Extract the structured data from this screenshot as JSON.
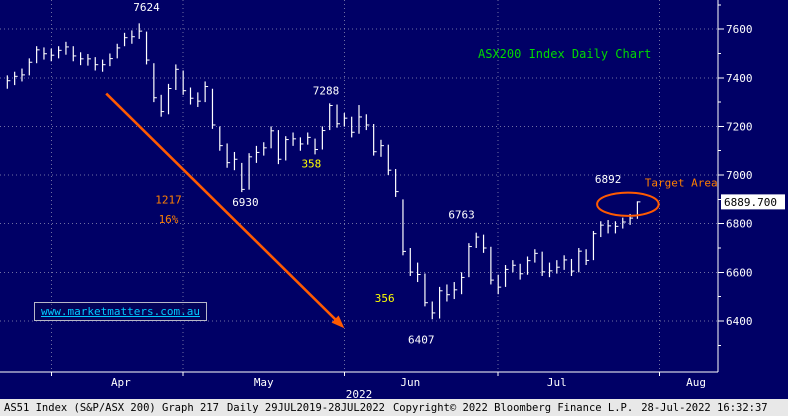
{
  "title_annotation": {
    "text": "ASX200 Index Daily Chart",
    "color": "#00d900"
  },
  "watermark": {
    "text": "www.marketmatters.com.au",
    "color": "#00ccff"
  },
  "footer": {
    "segments": [
      "AS51 Index (S&P/ASX 200) Graph 217",
      "Daily 29JUL2019-28JUL2022",
      "Copyright© 2022 Bloomberg Finance L.P.",
      "28-Jul-2022 16:32:37"
    ]
  },
  "colors": {
    "background": "#000066",
    "foreground": "#ffffff",
    "grid": "#8d8db3",
    "title_green": "#00d900",
    "annotation_yellow": "#ffff00",
    "annotation_orange": "#ff8000",
    "arrow_orange": "#ff5a00",
    "watermark_cyan": "#00ccff",
    "footer_bg": "#e8e8e8",
    "footer_text": "#000000"
  },
  "chart_data": {
    "type": "bar",
    "title": "ASX200 Index Daily Chart",
    "xlabel": "2022",
    "ylabel": "",
    "ylim": [
      6190,
      7720
    ],
    "yticks": [
      6400,
      6600,
      6800,
      7000,
      7200,
      7400,
      7600
    ],
    "x_domain": [
      -1,
      97
    ],
    "grid": "dotted",
    "last": 6889.7,
    "last_label": "6889.700",
    "x_axis": {
      "year": "2022"
    },
    "months": [
      {
        "label": "Apr",
        "start": 6,
        "label_at": 15.5
      },
      {
        "label": "May",
        "start": 24,
        "label_at": 35
      },
      {
        "label": "Jun",
        "start": 46,
        "label_at": 55
      },
      {
        "label": "Jul",
        "start": 67,
        "label_at": 75
      },
      {
        "label": "Aug",
        "start": 89,
        "label_at": 94
      }
    ],
    "series": [
      {
        "name": "AS51 Index (S&P/ASX 200)",
        "close": [
          7388,
          7406,
          7412,
          7464,
          7515,
          7499,
          7493,
          7513,
          7527,
          7490,
          7478,
          7478,
          7454,
          7454,
          7479,
          7523,
          7565,
          7569,
          7592,
          7473,
          7318,
          7261,
          7356,
          7435,
          7347,
          7316,
          7304,
          7364,
          7206,
          7121,
          7051,
          7065,
          6941,
          7075,
          7093,
          7112,
          7182,
          7065,
          7146,
          7149,
          7128,
          7155,
          7105,
          7183,
          7286,
          7211,
          7234,
          7176,
          7239,
          7206,
          7096,
          7121,
          7020,
          6932,
          6686,
          6601,
          6591,
          6475,
          6433,
          6524,
          6508,
          6528,
          6579,
          6706,
          6745,
          6700,
          6568,
          6539,
          6612,
          6629,
          6594,
          6648,
          6678,
          6602,
          6606,
          6621,
          6651,
          6605,
          6687,
          6649,
          6759,
          6794,
          6791,
          6789,
          6807,
          6823,
          6889.7
        ],
        "high": [
          7410,
          7425,
          7438,
          7480,
          7530,
          7525,
          7520,
          7530,
          7548,
          7530,
          7505,
          7498,
          7485,
          7475,
          7500,
          7540,
          7585,
          7595,
          7624,
          7590,
          7460,
          7330,
          7375,
          7455,
          7430,
          7360,
          7340,
          7385,
          7355,
          7200,
          7130,
          7095,
          7050,
          7090,
          7120,
          7135,
          7200,
          7185,
          7160,
          7175,
          7155,
          7175,
          7150,
          7200,
          7295,
          7290,
          7255,
          7240,
          7288,
          7250,
          7210,
          7145,
          7125,
          7025,
          6900,
          6700,
          6640,
          6595,
          6480,
          6540,
          6550,
          6560,
          6600,
          6720,
          6763,
          6755,
          6705,
          6590,
          6630,
          6650,
          6635,
          6665,
          6695,
          6685,
          6640,
          6650,
          6670,
          6655,
          6700,
          6695,
          6770,
          6810,
          6815,
          6810,
          6825,
          6840,
          6892
        ],
        "low": [
          7355,
          7370,
          7385,
          7410,
          7460,
          7475,
          7468,
          7480,
          7495,
          7468,
          7452,
          7450,
          7430,
          7425,
          7448,
          7480,
          7530,
          7540,
          7560,
          7455,
          7300,
          7240,
          7250,
          7350,
          7330,
          7290,
          7280,
          7300,
          7190,
          7100,
          7030,
          7020,
          6930,
          6940,
          7050,
          7080,
          7110,
          7045,
          7060,
          7120,
          7100,
          7125,
          7085,
          7105,
          7185,
          7195,
          7200,
          7155,
          7170,
          7185,
          7080,
          7075,
          7000,
          6910,
          6670,
          6585,
          6560,
          6460,
          6407,
          6410,
          6480,
          6490,
          6510,
          6580,
          6700,
          6680,
          6550,
          6510,
          6540,
          6600,
          6570,
          6590,
          6640,
          6585,
          6580,
          6595,
          6610,
          6585,
          6600,
          6630,
          6650,
          6745,
          6760,
          6760,
          6780,
          6795,
          6820
        ]
      }
    ],
    "annotations": [
      {
        "name": "peak-7624",
        "text": "7624",
        "x": 19,
        "y": 7675,
        "color": "#ffffff"
      },
      {
        "name": "high-7288",
        "text": "7288",
        "x": 43.5,
        "y": 7332,
        "color": "#ffffff"
      },
      {
        "name": "rally-358",
        "text": "358",
        "x": 41.5,
        "y": 7032,
        "color": "#ffff00"
      },
      {
        "name": "low-6930",
        "text": "6930",
        "x": 32.5,
        "y": 6872,
        "color": "#ffffff"
      },
      {
        "name": "decline-1217",
        "text": "1217",
        "x": 22,
        "y": 6882,
        "color": "#ff8000"
      },
      {
        "name": "decline-16pct",
        "text": "16%",
        "x": 22,
        "y": 6802,
        "color": "#ff8000"
      },
      {
        "name": "high-6763",
        "text": "6763",
        "x": 62,
        "y": 6822,
        "color": "#ffffff"
      },
      {
        "name": "rally-356",
        "text": "356",
        "x": 51.5,
        "y": 6478,
        "color": "#ffff00"
      },
      {
        "name": "low-6407",
        "text": "6407",
        "x": 56.5,
        "y": 6308,
        "color": "#ffffff"
      },
      {
        "name": "high-6892",
        "text": "6892",
        "x": 82,
        "y": 6968,
        "color": "#ffffff"
      },
      {
        "name": "target-area",
        "text": "Target Area",
        "x": 87,
        "y": 6952,
        "color": "#ff8000",
        "anchor": "start"
      }
    ],
    "arrow": {
      "from": {
        "x": 13.5,
        "y": 7335
      },
      "to": {
        "x": 46,
        "y": 6370
      },
      "color": "#ff5a00"
    },
    "ellipse": {
      "cx": 84.7,
      "cy": 6880,
      "rx": 4.2,
      "ry": 48,
      "color": "#ff5a00"
    }
  }
}
